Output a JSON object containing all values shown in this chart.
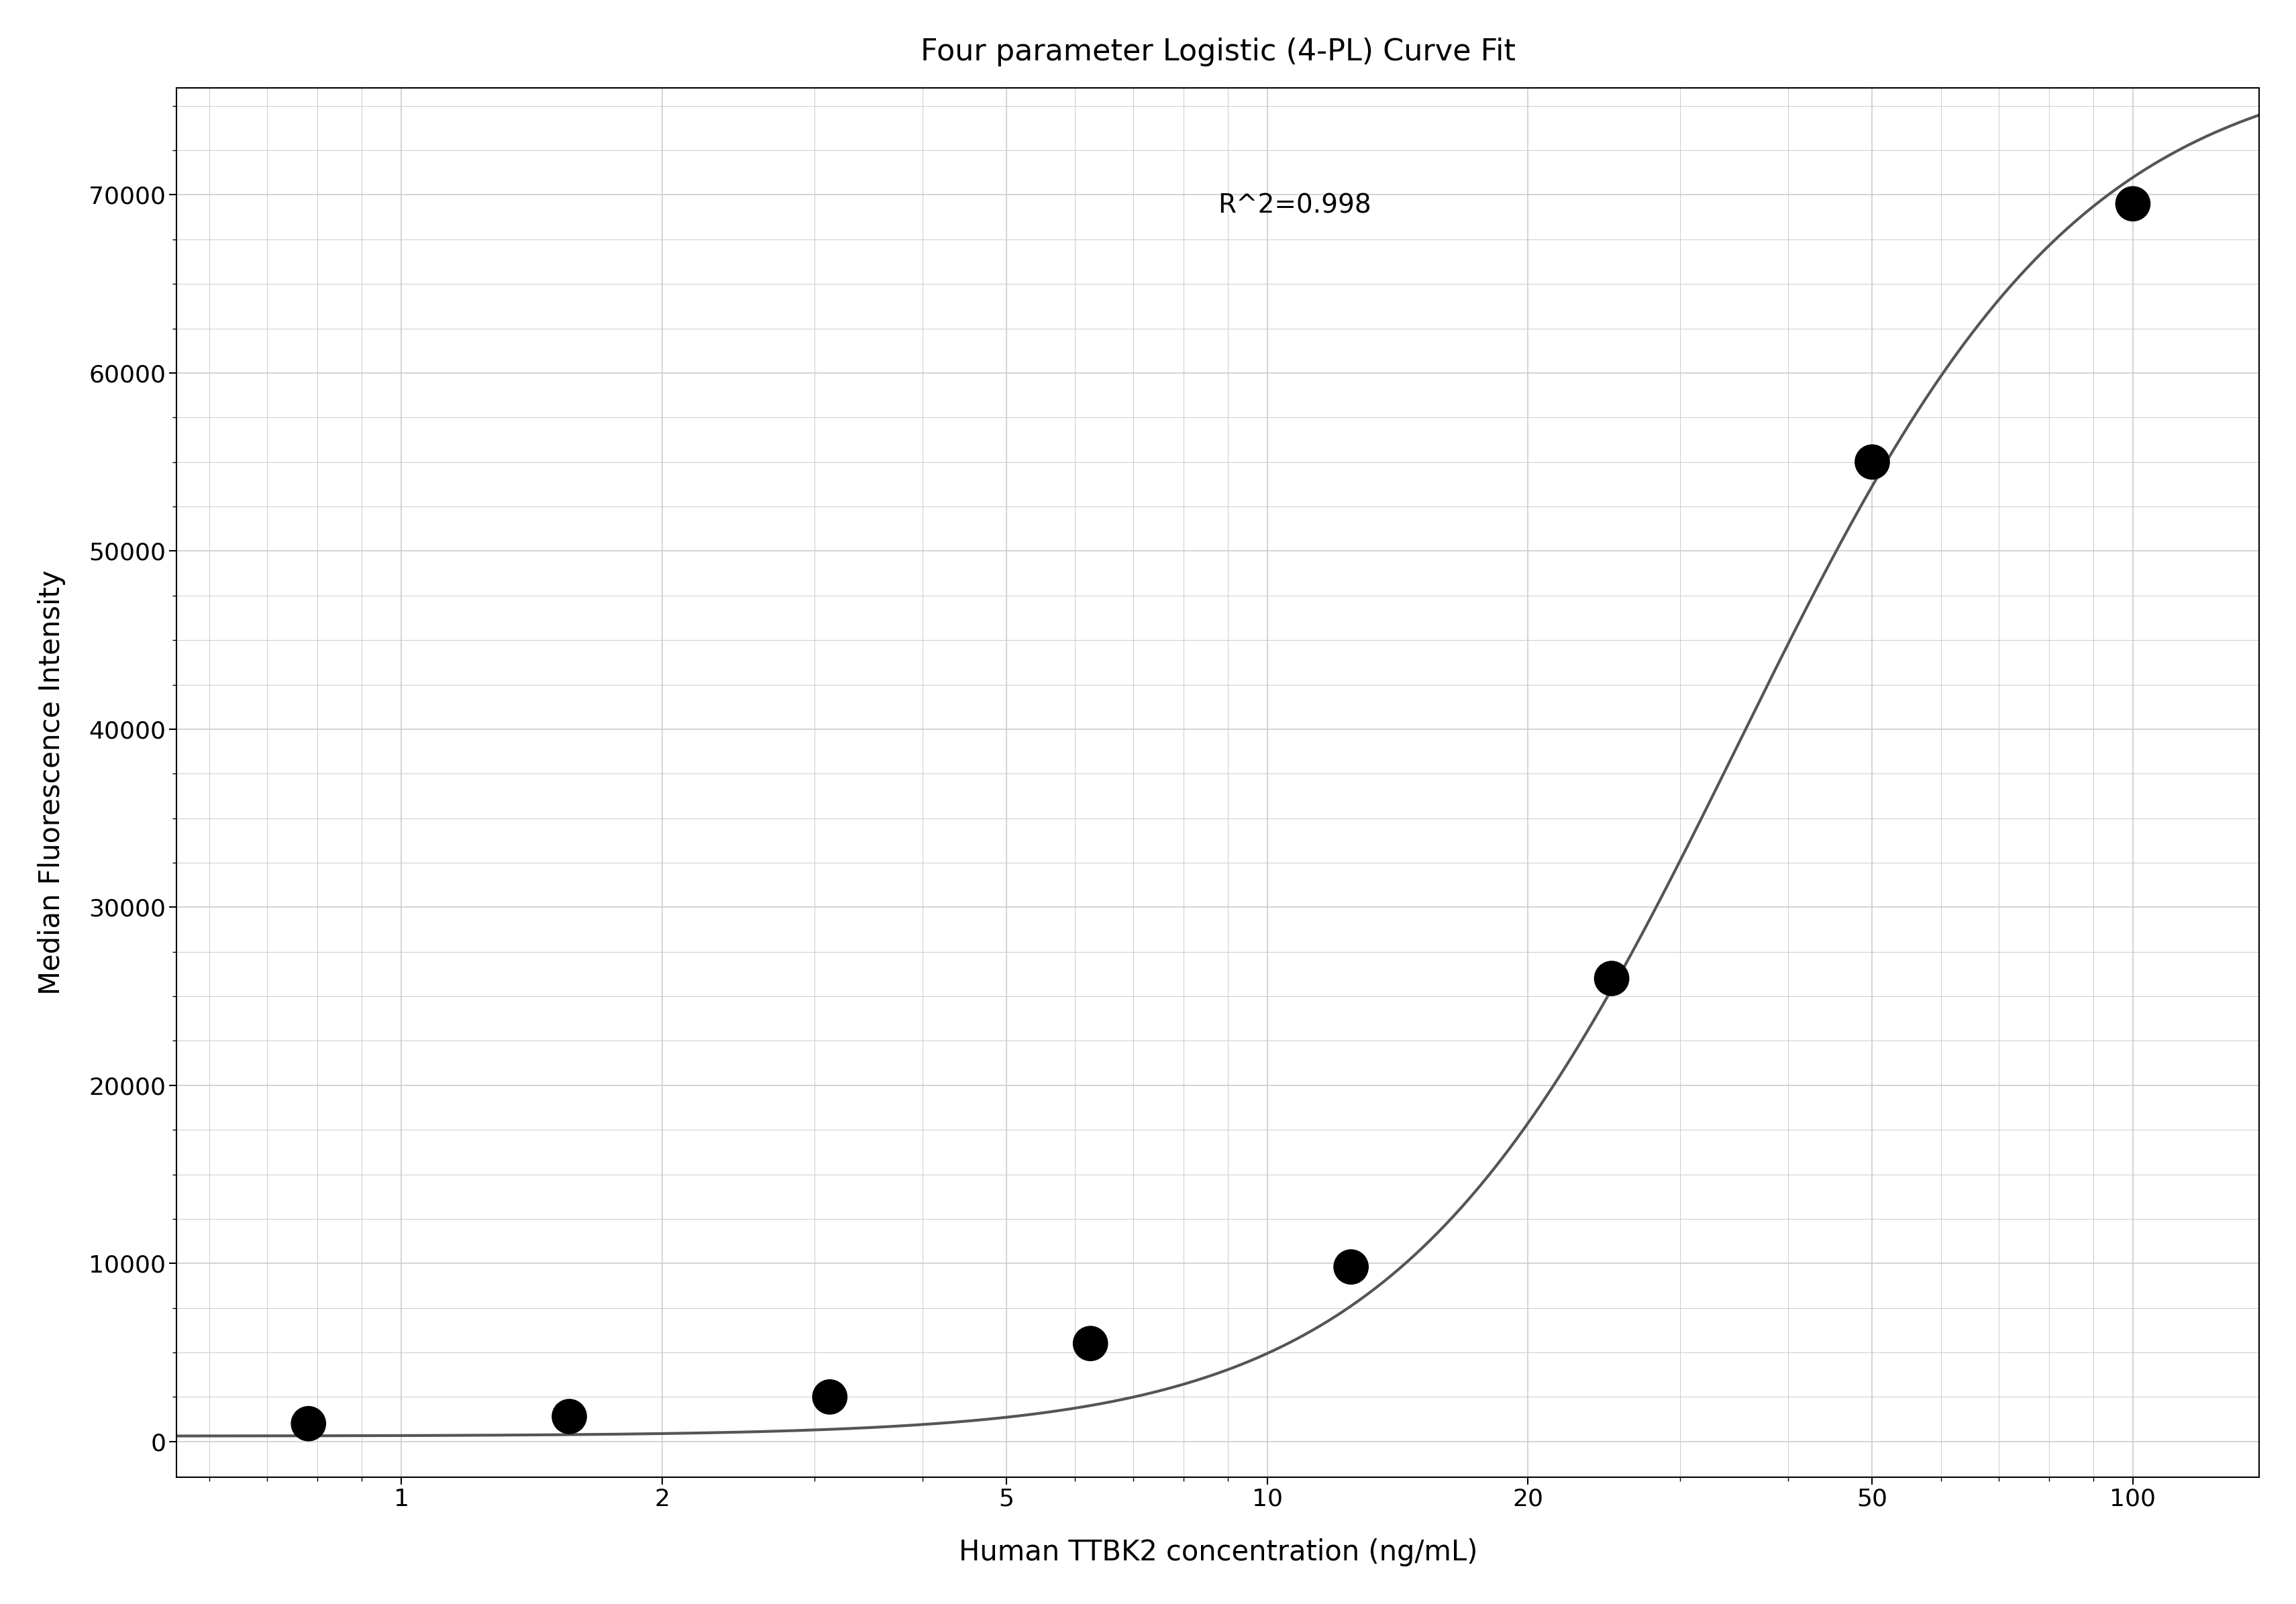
{
  "title": "Four parameter Logistic (4-PL) Curve Fit",
  "xlabel": "Human TTBK2 concentration (ng/mL)",
  "ylabel": "Median Fluorescence Intensity",
  "r_squared": "R^2=0.998",
  "data_x": [
    0.781,
    1.563,
    3.125,
    6.25,
    12.5,
    25,
    50,
    100
  ],
  "data_y": [
    1000,
    1400,
    2500,
    5500,
    9800,
    26000,
    55000,
    69500
  ],
  "xlim": [
    0.55,
    140
  ],
  "ylim": [
    -2000,
    76000
  ],
  "yticks": [
    0,
    10000,
    20000,
    30000,
    40000,
    50000,
    60000,
    70000
  ],
  "xticks": [
    1,
    2,
    5,
    10,
    20,
    50,
    100
  ],
  "xtick_labels": [
    "1",
    "2",
    "5",
    "10",
    "20",
    "50",
    "100"
  ],
  "curve_color": "#555555",
  "dot_color": "#000000",
  "dot_size": 180,
  "bg_color": "#ffffff",
  "grid_color": "#cccccc",
  "title_fontsize": 32,
  "label_fontsize": 30,
  "tick_fontsize": 26,
  "annotation_fontsize": 28,
  "4pl_A": 300,
  "4pl_B": 2.2,
  "4pl_C": 35.0,
  "4pl_D": 78000
}
